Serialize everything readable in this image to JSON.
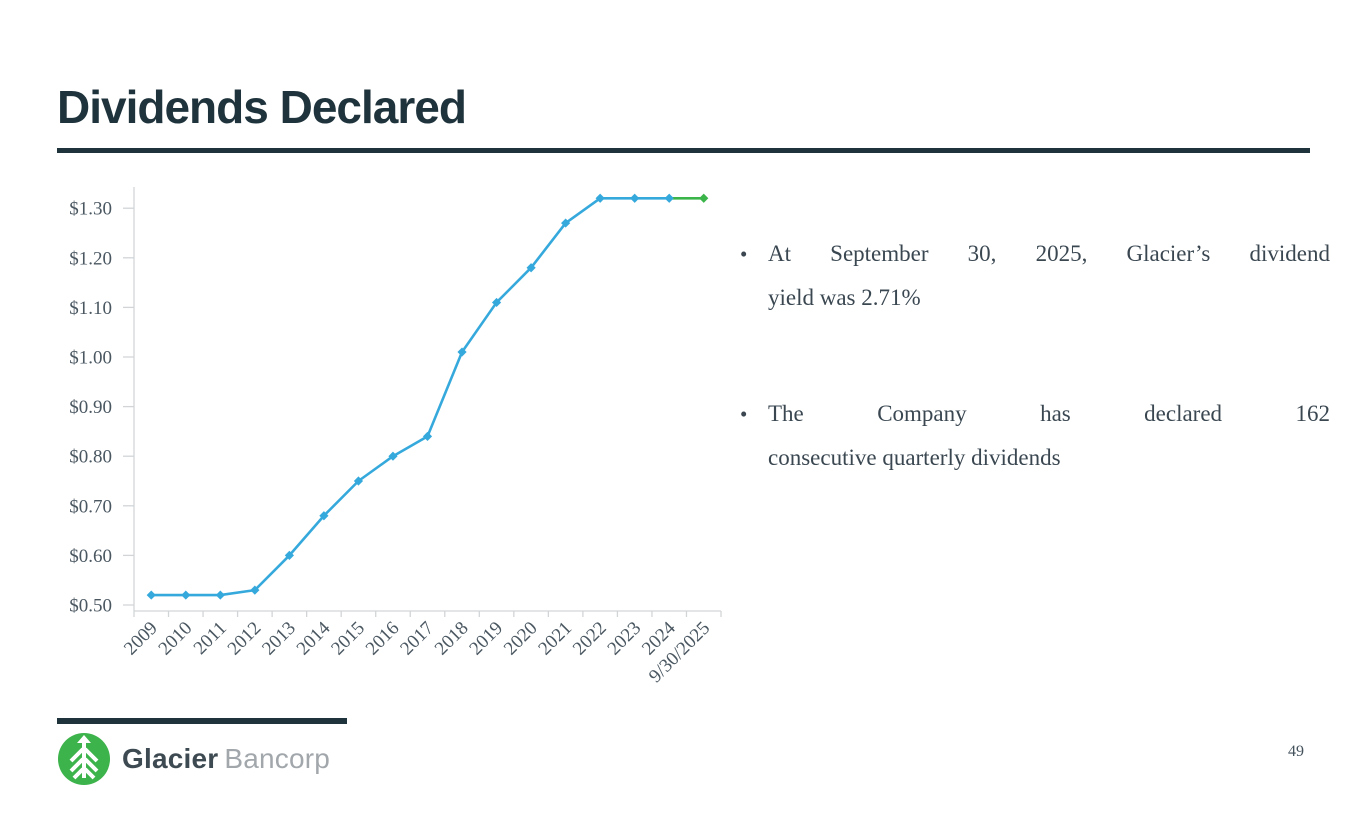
{
  "slide": {
    "title": "Dividends Declared",
    "page_number": "49"
  },
  "logo": {
    "name": "Glacier",
    "suffix": "Bancorp"
  },
  "bullet_glyph": "•",
  "bullets": [
    {
      "lines": [
        "At September 30, 2025, Glacier’s dividend",
        "yield was 2.71%"
      ]
    },
    {
      "lines": [
        "The Company has declared 162",
        "consecutive quarterly dividends"
      ]
    }
  ],
  "chart_data": {
    "type": "line",
    "title": "",
    "xlabel": "",
    "ylabel": "",
    "categories": [
      "2009",
      "2010",
      "2011",
      "2012",
      "2013",
      "2014",
      "2015",
      "2016",
      "2017",
      "2018",
      "2019",
      "2020",
      "2021",
      "2022",
      "2023",
      "2024",
      "9/30/2025"
    ],
    "values": [
      0.52,
      0.52,
      0.52,
      0.53,
      0.6,
      0.68,
      0.75,
      0.8,
      0.84,
      1.01,
      1.11,
      1.18,
      1.27,
      1.32,
      1.32,
      1.32,
      1.32
    ],
    "ylim": [
      0.5,
      1.3
    ],
    "y_ticks": [
      0.5,
      0.6,
      0.7,
      0.8,
      0.9,
      1.0,
      1.1,
      1.2,
      1.3
    ],
    "y_tick_labels": [
      "$0.50",
      "$0.60",
      "$0.70",
      "$0.80",
      "$0.90",
      "$1.00",
      "$1.10",
      "$1.20",
      "$1.30"
    ],
    "grid": false,
    "legend": false,
    "marker": "diamond",
    "final_point_highlighted": true,
    "colors": {
      "line": "#36a9dc",
      "final_segment": "#3bb54a",
      "axis": "#d2d5d7",
      "labels": "#4a5761"
    }
  }
}
